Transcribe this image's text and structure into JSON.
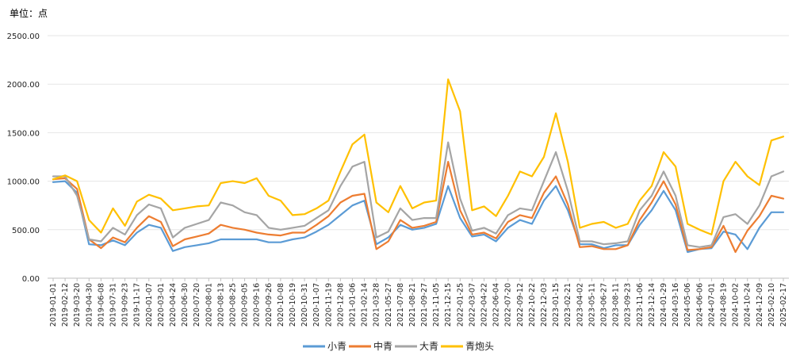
{
  "chart_data": {
    "type": "line",
    "unit_label": "单位：点",
    "ylim": [
      0,
      2500
    ],
    "yticks": [
      "0.00",
      "500.00",
      "1000.00",
      "1500.00",
      "2000.00",
      "2500.00"
    ],
    "grid": "horizontal",
    "legend_position": "bottom",
    "x": [
      "2019-01-01",
      "2019-02-12",
      "2019-03-20",
      "2019-04-30",
      "2019-06-08",
      "2019-07-31",
      "2019-09-23",
      "2019-11-17",
      "2020-01-07",
      "2020-03-01",
      "2020-04-24",
      "2020-06-30",
      "2020-07-20",
      "2020-08-01",
      "2020-08-13",
      "2020-08-25",
      "2020-09-05",
      "2020-09-16",
      "2020-09-26",
      "2020-10-08",
      "2020-10-19",
      "2020-10-31",
      "2020-11-07",
      "2020-11-19",
      "2020-12-08",
      "2021-01-06",
      "2021-02-14",
      "2021-03-28",
      "2021-05-27",
      "2021-07-08",
      "2021-08-21",
      "2021-09-27",
      "2021-11-05",
      "2021-12-15",
      "2022-01-25",
      "2022-03-07",
      "2022-04-22",
      "2022-06-04",
      "2022-07-20",
      "2022-09-12",
      "2022-10-22",
      "2022-12-03",
      "2023-01-15",
      "2023-02-21",
      "2023-04-02",
      "2023-05-11",
      "2023-06-27",
      "2023-08-11",
      "2023-09-23",
      "2023-11-06",
      "2023-12-14",
      "2024-01-29",
      "2024-03-16",
      "2024-05-06",
      "2024-06-06",
      "2024-07-01",
      "2024-08-19",
      "2024-10-02",
      "2024-10-24",
      "2024-12-09",
      "2025-02-10",
      "2025-02-17"
    ],
    "series": [
      {
        "name": "小青",
        "color": "#5B9BD5",
        "values": [
          990,
          1000,
          880,
          350,
          340,
          390,
          340,
          470,
          550,
          520,
          280,
          320,
          340,
          360,
          400,
          400,
          400,
          400,
          370,
          370,
          400,
          420,
          480,
          550,
          650,
          750,
          800,
          350,
          420,
          550,
          500,
          520,
          560,
          950,
          620,
          430,
          450,
          380,
          520,
          600,
          560,
          800,
          950,
          700,
          350,
          350,
          310,
          340,
          340,
          550,
          700,
          900,
          700,
          270,
          300,
          310,
          480,
          450,
          300,
          520,
          680,
          680
        ]
      },
      {
        "name": "中青",
        "color": "#ED7D31",
        "values": [
          1020,
          1030,
          920,
          400,
          310,
          420,
          370,
          520,
          640,
          580,
          330,
          400,
          430,
          460,
          550,
          520,
          500,
          470,
          450,
          440,
          470,
          470,
          550,
          640,
          780,
          850,
          870,
          300,
          380,
          600,
          520,
          540,
          580,
          1200,
          700,
          450,
          470,
          410,
          580,
          650,
          620,
          880,
          1050,
          760,
          320,
          330,
          300,
          300,
          340,
          600,
          780,
          1000,
          760,
          290,
          300,
          320,
          540,
          270,
          490,
          640,
          850,
          820
        ]
      },
      {
        "name": "大青",
        "color": "#A5A5A5",
        "values": [
          1050,
          1050,
          850,
          400,
          380,
          520,
          450,
          650,
          760,
          720,
          420,
          520,
          560,
          600,
          780,
          750,
          680,
          650,
          520,
          500,
          520,
          540,
          620,
          700,
          950,
          1150,
          1200,
          420,
          480,
          720,
          600,
          620,
          620,
          1400,
          820,
          490,
          520,
          460,
          650,
          720,
          700,
          1000,
          1300,
          900,
          380,
          380,
          350,
          360,
          380,
          700,
          850,
          1100,
          850,
          340,
          320,
          340,
          630,
          660,
          560,
          750,
          1050,
          1100
        ]
      },
      {
        "name": "青炮头",
        "color": "#FFC000",
        "values": [
          1020,
          1060,
          1000,
          600,
          470,
          720,
          540,
          790,
          860,
          820,
          700,
          720,
          740,
          750,
          980,
          1000,
          980,
          1030,
          850,
          800,
          650,
          660,
          720,
          800,
          1100,
          1380,
          1480,
          780,
          680,
          950,
          720,
          780,
          800,
          2050,
          1720,
          700,
          740,
          640,
          850,
          1100,
          1050,
          1250,
          1700,
          1200,
          520,
          560,
          580,
          520,
          560,
          800,
          950,
          1300,
          1150,
          560,
          500,
          450,
          1000,
          1200,
          1050,
          960,
          1420,
          1460
        ]
      }
    ]
  }
}
